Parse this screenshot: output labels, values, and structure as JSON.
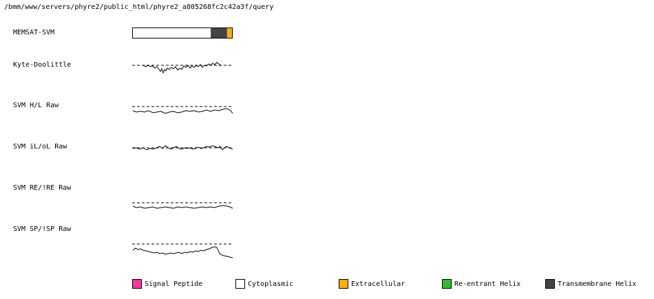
{
  "title_path": "/bmm/www/servers/phyre2/public_html/phyre2_a805268fc2c42a3f/query",
  "tracks": [
    {
      "id": "memsat",
      "label": "MEMSAT-SVM"
    },
    {
      "id": "kd",
      "label": "Kyte-Doolittle"
    },
    {
      "id": "hl",
      "label": "SVM H/L Raw"
    },
    {
      "id": "ilol",
      "label": "SVM iL/oL Raw"
    },
    {
      "id": "re",
      "label": "SVM RE/!RE Raw"
    },
    {
      "id": "sp",
      "label": "SVM SP/!SP Raw"
    }
  ],
  "memsat_bar": [
    {
      "type": "Cytoplasmic",
      "fraction": 0.787
    },
    {
      "type": "Transmembrane Helix",
      "fraction": 0.164
    },
    {
      "type": "Extracellular",
      "fraction": 0.049
    }
  ],
  "legend": [
    {
      "label": "Signal Peptide",
      "color": "#ff3399"
    },
    {
      "label": "Cytoplasmic",
      "color": "#ffffff"
    },
    {
      "label": "Extracellular",
      "color": "#ffb000"
    },
    {
      "label": "Re-entrant Helix",
      "color": "#33bb33"
    },
    {
      "label": "Transmembrane Helix",
      "color": "#444444"
    }
  ]
}
